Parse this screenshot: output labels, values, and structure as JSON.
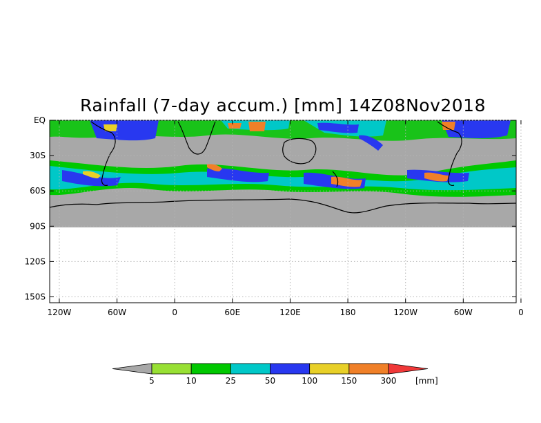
{
  "title": "Rainfall (7-day accum.) [mm] 14Z08Nov2018",
  "chart_data": {
    "type": "heatmap",
    "title": "Rainfall (7-day accum.) [mm] 14Z08Nov2018",
    "x_ticks": [
      "120W",
      "60W",
      "0",
      "60E",
      "120E",
      "180",
      "120W",
      "60W",
      "0"
    ],
    "y_ticks": [
      "EQ",
      "30S",
      "60S",
      "90S",
      "120S",
      "150S"
    ],
    "y_values": [
      0,
      -30,
      -60,
      -90,
      -120,
      -150
    ],
    "x_values": [
      -120,
      -60,
      0,
      60,
      120,
      180,
      240,
      300,
      360
    ],
    "xlim": [
      -130,
      355
    ],
    "ylim": [
      -155,
      0
    ],
    "grid": true,
    "data_coverage_lat": [
      0,
      -90
    ],
    "colorbar": {
      "unit": "[mm]",
      "levels": [
        "5",
        "10",
        "25",
        "50",
        "100",
        "150",
        "300"
      ],
      "colors": [
        "#a8a8a8",
        "#98e034",
        "#00c800",
        "#00c8c8",
        "#2838f0",
        "#e8d028",
        "#f08028",
        "#f03838"
      ]
    }
  },
  "colors": {
    "no_data": "#a8a8a8",
    "coast": "#000000",
    "grid": "#b4b4b4"
  }
}
